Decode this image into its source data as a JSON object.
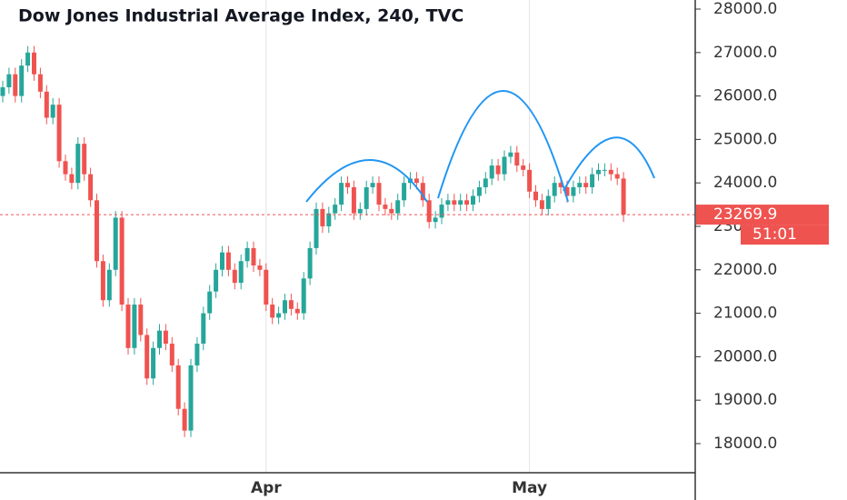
{
  "chart_data": {
    "type": "candlestick",
    "title": "Dow Jones Industrial Average Index, 240, TVC",
    "up_color": "#26a69a",
    "down_color": "#ef5350",
    "categories": [
      null,
      null,
      null,
      null,
      null,
      null,
      null,
      null,
      null,
      null,
      null,
      null,
      null,
      null,
      null,
      null,
      null,
      null,
      null,
      null,
      null,
      null,
      null,
      null,
      null,
      null,
      null,
      null,
      null,
      null,
      null,
      null,
      null,
      null,
      null,
      null,
      null,
      null,
      null,
      null,
      null,
      null,
      "Apr",
      null,
      null,
      null,
      null,
      null,
      null,
      null,
      null,
      null,
      null,
      null,
      null,
      null,
      null,
      null,
      null,
      null,
      null,
      null,
      null,
      null,
      null,
      null,
      null,
      null,
      null,
      null,
      null,
      null,
      null,
      null,
      null,
      null,
      null,
      null,
      null,
      null,
      null,
      null,
      null,
      null,
      "May",
      null,
      null,
      null,
      null,
      null,
      null,
      null,
      null,
      null,
      null,
      null,
      null,
      null,
      null,
      null
    ],
    "ohlc": [
      [
        26000,
        26350,
        25850,
        26200
      ],
      [
        26200,
        26650,
        26050,
        26500
      ],
      [
        26500,
        26650,
        25850,
        26000
      ],
      [
        26000,
        26850,
        25850,
        26700
      ],
      [
        26700,
        27150,
        26550,
        27000
      ],
      [
        27000,
        27150,
        26350,
        26500
      ],
      [
        26500,
        26650,
        25950,
        26100
      ],
      [
        26100,
        26250,
        25350,
        25500
      ],
      [
        25500,
        25950,
        25350,
        25800
      ],
      [
        25800,
        25950,
        24350,
        24500
      ],
      [
        24500,
        24650,
        24050,
        24200
      ],
      [
        24200,
        24350,
        23850,
        24000
      ],
      [
        24000,
        25050,
        23850,
        24900
      ],
      [
        24900,
        25050,
        24050,
        24200
      ],
      [
        24200,
        24350,
        23450,
        23600
      ],
      [
        23600,
        23750,
        22050,
        22200
      ],
      [
        22200,
        22350,
        21150,
        21300
      ],
      [
        21300,
        22150,
        21150,
        22000
      ],
      [
        22000,
        23350,
        21850,
        23200
      ],
      [
        23200,
        23350,
        21050,
        21200
      ],
      [
        21200,
        21350,
        20050,
        20200
      ],
      [
        20200,
        21350,
        20050,
        21200
      ],
      [
        21200,
        21350,
        20350,
        20500
      ],
      [
        20500,
        20650,
        19350,
        19500
      ],
      [
        19500,
        20350,
        19350,
        20200
      ],
      [
        20200,
        20750,
        20050,
        20600
      ],
      [
        20600,
        20750,
        20150,
        20300
      ],
      [
        20300,
        20450,
        19650,
        19800
      ],
      [
        19800,
        19950,
        18650,
        18800
      ],
      [
        18800,
        18950,
        18150,
        18300
      ],
      [
        18300,
        19950,
        18150,
        19800
      ],
      [
        19800,
        20450,
        19650,
        20300
      ],
      [
        20300,
        21150,
        20150,
        21000
      ],
      [
        21000,
        21650,
        20850,
        21500
      ],
      [
        21500,
        22150,
        21350,
        22000
      ],
      [
        22000,
        22550,
        21850,
        22400
      ],
      [
        22400,
        22550,
        21850,
        22000
      ],
      [
        22000,
        22150,
        21550,
        21700
      ],
      [
        21700,
        22350,
        21550,
        22200
      ],
      [
        22200,
        22650,
        22050,
        22500
      ],
      [
        22500,
        22650,
        21950,
        22100
      ],
      [
        22100,
        22250,
        21850,
        22000
      ],
      [
        22000,
        22150,
        21050,
        21200
      ],
      [
        21200,
        21350,
        20750,
        20900
      ],
      [
        20900,
        21150,
        20750,
        21000
      ],
      [
        21000,
        21450,
        20850,
        21300
      ],
      [
        21300,
        21450,
        20950,
        21100
      ],
      [
        21100,
        21250,
        20850,
        21000
      ],
      [
        21000,
        21950,
        20850,
        21800
      ],
      [
        21800,
        22650,
        21650,
        22500
      ],
      [
        22500,
        23550,
        22350,
        23400
      ],
      [
        23400,
        23550,
        22850,
        23000
      ],
      [
        23000,
        23450,
        22850,
        23300
      ],
      [
        23300,
        23650,
        23150,
        23500
      ],
      [
        23500,
        24150,
        23350,
        24000
      ],
      [
        24000,
        24150,
        23750,
        23900
      ],
      [
        23900,
        24050,
        23150,
        23300
      ],
      [
        23300,
        23550,
        23150,
        23400
      ],
      [
        23400,
        24050,
        23250,
        23900
      ],
      [
        23900,
        24150,
        23750,
        24000
      ],
      [
        24000,
        24150,
        23350,
        23500
      ],
      [
        23500,
        23650,
        23250,
        23400
      ],
      [
        23400,
        23550,
        23150,
        23300
      ],
      [
        23300,
        23750,
        23150,
        23600
      ],
      [
        23600,
        24150,
        23450,
        24000
      ],
      [
        24000,
        24250,
        23850,
        24100
      ],
      [
        24100,
        24250,
        23850,
        24000
      ],
      [
        24000,
        24150,
        23450,
        23600
      ],
      [
        23600,
        23750,
        22950,
        23100
      ],
      [
        23100,
        23350,
        22950,
        23200
      ],
      [
        23200,
        23650,
        23050,
        23500
      ],
      [
        23500,
        23750,
        23350,
        23600
      ],
      [
        23600,
        23750,
        23350,
        23500
      ],
      [
        23500,
        23750,
        23350,
        23600
      ],
      [
        23600,
        23750,
        23350,
        23500
      ],
      [
        23500,
        23850,
        23350,
        23700
      ],
      [
        23700,
        24050,
        23550,
        23900
      ],
      [
        23900,
        24250,
        23750,
        24100
      ],
      [
        24100,
        24550,
        23950,
        24400
      ],
      [
        24400,
        24550,
        24050,
        24200
      ],
      [
        24200,
        24750,
        24050,
        24600
      ],
      [
        24600,
        24850,
        24450,
        24700
      ],
      [
        24700,
        24850,
        24250,
        24400
      ],
      [
        24400,
        24550,
        24150,
        24300
      ],
      [
        24300,
        24450,
        23650,
        23800
      ],
      [
        23800,
        23950,
        23450,
        23600
      ],
      [
        23600,
        23750,
        23250,
        23400
      ],
      [
        23400,
        23850,
        23250,
        23700
      ],
      [
        23700,
        24150,
        23550,
        24000
      ],
      [
        24000,
        24150,
        23750,
        23900
      ],
      [
        23900,
        24050,
        23550,
        23700
      ],
      [
        23700,
        24050,
        23550,
        23900
      ],
      [
        23900,
        24150,
        23750,
        24000
      ],
      [
        24000,
        24150,
        23750,
        23900
      ],
      [
        23900,
        24350,
        23750,
        24200
      ],
      [
        24200,
        24450,
        24050,
        24300
      ],
      [
        24300,
        24450,
        24150,
        24300
      ],
      [
        24300,
        24450,
        24050,
        24200
      ],
      [
        24200,
        24350,
        23950,
        24100
      ],
      [
        24100,
        24250,
        23100,
        23269.9
      ]
    ],
    "ylim": [
      17330,
      28209
    ],
    "yticks": [
      {
        "value": 18000,
        "label": "18000.0"
      },
      {
        "value": 19000,
        "label": "19000.0"
      },
      {
        "value": 20000,
        "label": "20000.0"
      },
      {
        "value": 21000,
        "label": "21000.0"
      },
      {
        "value": 22000,
        "label": "22000.0"
      },
      {
        "value": 23000,
        "label": "23000.0"
      },
      {
        "value": 24000,
        "label": "24000.0"
      },
      {
        "value": 25000,
        "label": "25000.0"
      },
      {
        "value": 26000,
        "label": "26000.0"
      },
      {
        "value": 27000,
        "label": "27000.0"
      },
      {
        "value": 28000,
        "label": "28000.0"
      }
    ],
    "last_price": 23269.9,
    "countdown": "51:01",
    "last_color": "#ef5350"
  }
}
